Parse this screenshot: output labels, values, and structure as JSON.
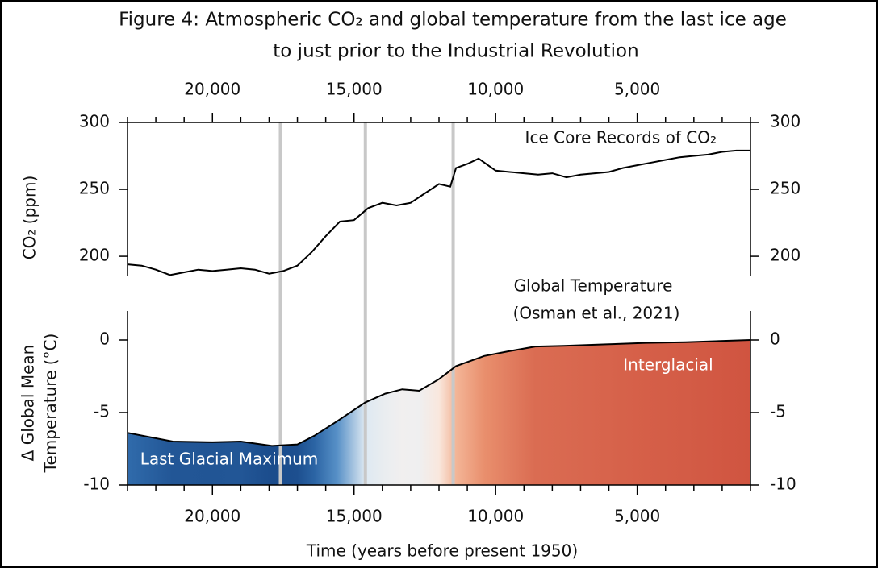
{
  "chart_data": [
    {
      "type": "line",
      "title": [
        "Figure 4: Atmospheric CO₂ and global temperature from the last ice age",
        "to just prior to the Industrial Revolution"
      ],
      "ylabel": "CO₂ (ppm)",
      "annotation": "Ice Core Records of CO₂",
      "color": "#000000",
      "x": [
        23000,
        22500,
        22000,
        21500,
        21000,
        20500,
        20000,
        19500,
        19000,
        18500,
        18000,
        17500,
        17000,
        16500,
        16000,
        15500,
        15000,
        14500,
        14000,
        13500,
        13000,
        12500,
        12000,
        11600,
        11400,
        11000,
        10600,
        10000,
        9500,
        9000,
        8500,
        8000,
        7500,
        7000,
        6500,
        6000,
        5500,
        5000,
        4500,
        4000,
        3500,
        3000,
        2500,
        2000,
        1500,
        1000
      ],
      "values": [
        194,
        193,
        190,
        186,
        188,
        190,
        189,
        190,
        191,
        190,
        187,
        189,
        193,
        203,
        215,
        226,
        227,
        236,
        240,
        238,
        240,
        247,
        254,
        252,
        266,
        269,
        273,
        264,
        263,
        262,
        261,
        262,
        259,
        261,
        262,
        263,
        266,
        268,
        270,
        272,
        274,
        275,
        276,
        278,
        279,
        279
      ],
      "xlim": [
        23000,
        1000
      ],
      "xticks": [
        {
          "value": 20000,
          "label": "20,000"
        },
        {
          "value": 15000,
          "label": "15,000"
        },
        {
          "value": 10000,
          "label": "10,000"
        },
        {
          "value": 5000,
          "label": "5,000"
        }
      ],
      "xminorticks": [
        23000,
        22000,
        21000,
        19000,
        18000,
        17000,
        16000,
        14000,
        13000,
        12000,
        11000,
        9000,
        8000,
        7000,
        6000,
        4000,
        3000,
        2000,
        1000
      ],
      "ylim": [
        185,
        300
      ],
      "yticks": [
        200,
        250,
        300
      ],
      "vlines": [
        17600,
        14600,
        11500
      ],
      "vline_color": "#c8c8c8"
    },
    {
      "type": "area",
      "ylabel": [
        "Δ Global Mean",
        "Temperature (°C)"
      ],
      "xlabel": "Time (years before present 1950)",
      "annotations": [
        "Global Temperature",
        "(Osman et al.,  2021)",
        "Interglacial",
        "Last Glacial Maximum"
      ],
      "color": "#000000",
      "colors": [
        "#1b4c8c",
        "#3d7fbf",
        "#dce8f2",
        "#fbf3ee",
        "#f1a27c",
        "#d05440"
      ],
      "x": [
        23000,
        21400,
        20000,
        19000,
        17900,
        17000,
        16400,
        15600,
        14600,
        13900,
        13300,
        12700,
        12000,
        11400,
        10400,
        9600,
        8600,
        7600,
        6100,
        4700,
        3300,
        1000
      ],
      "values": [
        -6.4,
        -7.0,
        -7.05,
        -7.0,
        -7.3,
        -7.2,
        -6.6,
        -5.6,
        -4.3,
        -3.7,
        -3.4,
        -3.5,
        -2.7,
        -1.8,
        -1.1,
        -0.8,
        -0.45,
        -0.4,
        -0.3,
        -0.2,
        -0.15,
        0
      ],
      "xlim": [
        23000,
        1000
      ],
      "xticks": [
        {
          "value": 20000,
          "label": "20,000"
        },
        {
          "value": 15000,
          "label": "15,000"
        },
        {
          "value": 10000,
          "label": "10,000"
        },
        {
          "value": 5000,
          "label": "5,000"
        }
      ],
      "xminorticks": [
        23000,
        22000,
        21000,
        19000,
        18000,
        17000,
        16000,
        14000,
        13000,
        12000,
        11000,
        9000,
        8000,
        7000,
        6000,
        4000,
        3000,
        2000,
        1000
      ],
      "ylim": [
        -10,
        2
      ],
      "yticks": [
        -10,
        -5,
        0
      ]
    }
  ]
}
